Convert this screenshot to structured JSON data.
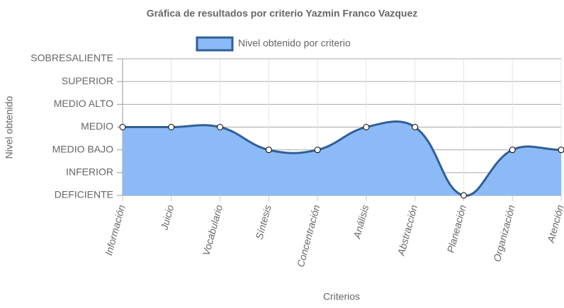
{
  "chart_data": {
    "type": "line",
    "title": "Gráfica de resultados por criterio Yazmin Franco Vazquez",
    "x_label": "Criterios",
    "y_label": "Nivel obtenido",
    "categories": [
      "Información",
      "Juicio",
      "Vocabulario",
      "Síntesis",
      "Concentración",
      "Análisis",
      "Abstracción",
      "Planeación",
      "Organización",
      "Atención"
    ],
    "series": [
      {
        "name": "Nivel obtenido por criterio",
        "color": "#2f5f96",
        "fill": "#8cbaf7",
        "values": [
          3,
          3,
          3,
          2,
          2,
          3,
          3,
          0,
          2,
          2
        ]
      }
    ],
    "ylim": [
      0,
      6
    ],
    "yticks": [
      {
        "value": 0,
        "label": "DEFICIENTE"
      },
      {
        "value": 1,
        "label": "INFERIOR"
      },
      {
        "value": 2,
        "label": "MEDIO BAJO"
      },
      {
        "value": 3,
        "label": "MEDIO"
      },
      {
        "value": 4,
        "label": "MEDIO ALTO"
      },
      {
        "value": 5,
        "label": "SUPERIOR"
      },
      {
        "value": 6,
        "label": "SOBRESALIENTE"
      }
    ],
    "grid": true,
    "legend": "top"
  }
}
